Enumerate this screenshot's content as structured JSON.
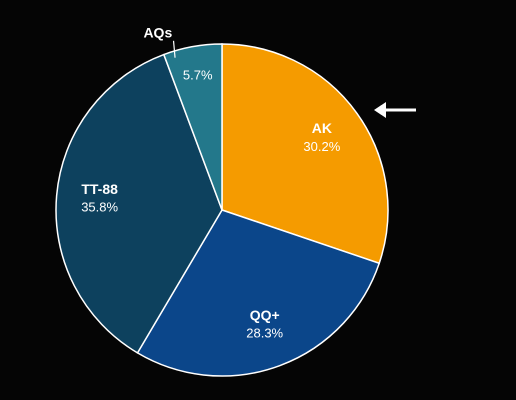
{
  "chart_data": {
    "type": "pie",
    "categories": [
      "AK",
      "QQ+",
      "TT-88",
      "AQs"
    ],
    "values": [
      30.2,
      28.3,
      35.8,
      5.7
    ],
    "value_labels": [
      "30.2%",
      "28.3%",
      "35.8%",
      "5.7%"
    ],
    "colors": [
      "#f59b00",
      "#0b468a",
      "#0d415e",
      "#23788b"
    ]
  }
}
